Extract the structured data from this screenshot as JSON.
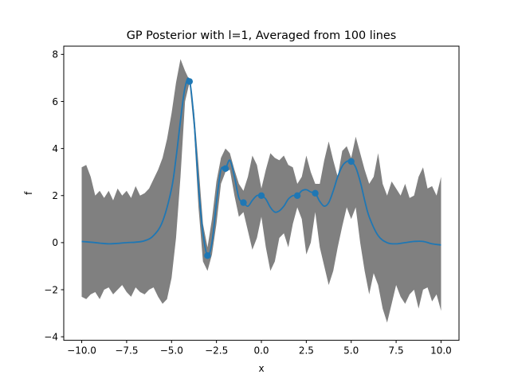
{
  "chart_data": {
    "type": "line",
    "title": "GP Posterior with l=1, Averaged from 100 lines",
    "xlabel": "x",
    "ylabel": "f",
    "xlim": [
      -11.0,
      11.0
    ],
    "ylim": [
      -4.15,
      8.35
    ],
    "xticks": [
      -10.0,
      -7.5,
      -5.0,
      -2.5,
      0.0,
      2.5,
      5.0,
      7.5,
      10.0
    ],
    "xtick_labels": [
      "−10.0",
      "−7.5",
      "−5.0",
      "−2.5",
      "0.0",
      "2.5",
      "5.0",
      "7.5",
      "10.0"
    ],
    "yticks": [
      -4,
      -2,
      0,
      2,
      4,
      6,
      8
    ],
    "ytick_labels": [
      "−4",
      "−2",
      "0",
      "2",
      "4",
      "6",
      "8"
    ],
    "grid": false,
    "legend": "none",
    "colors": {
      "mean": "#1f77b4",
      "band": "#808080",
      "points": "#1f77b4"
    },
    "points": {
      "x": [
        -4,
        -3,
        -2,
        -1,
        0,
        2,
        3,
        5
      ],
      "y": [
        6.85,
        -0.55,
        3.15,
        1.7,
        2.0,
        2.0,
        2.1,
        3.45
      ]
    },
    "mean": {
      "x": [
        -10,
        -9.5,
        -9,
        -8.5,
        -8,
        -7.5,
        -7,
        -6.5,
        -6,
        -5.5,
        -5,
        -4.75,
        -4.5,
        -4.25,
        -4,
        -3.75,
        -3.5,
        -3.25,
        -3,
        -2.75,
        -2.5,
        -2.25,
        -2,
        -1.75,
        -1.5,
        -1.25,
        -1,
        -0.75,
        -0.5,
        -0.25,
        0,
        0.25,
        0.5,
        0.75,
        1,
        1.25,
        1.5,
        1.75,
        2,
        2.25,
        2.5,
        2.75,
        3,
        3.25,
        3.5,
        3.75,
        4,
        4.25,
        4.5,
        4.75,
        5,
        5.25,
        5.5,
        5.75,
        6,
        6.5,
        7,
        7.5,
        8,
        8.5,
        9,
        9.5,
        10
      ],
      "y": [
        0.05,
        0.02,
        -0.02,
        -0.05,
        -0.03,
        0.0,
        0.02,
        0.08,
        0.3,
        0.9,
        2.3,
        3.6,
        5.2,
        6.6,
        6.9,
        5.2,
        2.4,
        0.4,
        -0.55,
        0.0,
        1.7,
        3.1,
        3.15,
        3.5,
        2.8,
        1.9,
        1.7,
        1.55,
        1.8,
        2.0,
        2.0,
        1.85,
        1.5,
        1.3,
        1.35,
        1.55,
        1.85,
        2.0,
        2.0,
        2.2,
        2.25,
        2.15,
        2.1,
        1.75,
        1.55,
        1.7,
        2.2,
        2.8,
        3.25,
        3.45,
        3.45,
        3.2,
        2.6,
        1.8,
        1.1,
        0.3,
        0.0,
        -0.05,
        0.0,
        0.05,
        0.05,
        -0.05,
        -0.1
      ]
    },
    "band": {
      "x": [
        -10,
        -9.75,
        -9.5,
        -9.25,
        -9,
        -8.75,
        -8.5,
        -8.25,
        -8,
        -7.75,
        -7.5,
        -7.25,
        -7,
        -6.75,
        -6.5,
        -6.25,
        -6,
        -5.75,
        -5.5,
        -5.25,
        -5,
        -4.75,
        -4.5,
        -4.25,
        -4,
        -3.75,
        -3.5,
        -3.25,
        -3,
        -2.75,
        -2.5,
        -2.25,
        -2,
        -1.75,
        -1.5,
        -1.25,
        -1,
        -0.75,
        -0.5,
        -0.25,
        0,
        0.25,
        0.5,
        0.75,
        1,
        1.25,
        1.5,
        1.75,
        2,
        2.25,
        2.5,
        2.75,
        3,
        3.25,
        3.5,
        3.75,
        4,
        4.25,
        4.5,
        4.75,
        5,
        5.25,
        5.5,
        5.75,
        6,
        6.25,
        6.5,
        6.75,
        7,
        7.25,
        7.5,
        7.75,
        8,
        8.25,
        8.5,
        8.75,
        9,
        9.25,
        9.5,
        9.75,
        10
      ],
      "upper": [
        3.2,
        3.3,
        2.8,
        2.0,
        2.2,
        1.9,
        2.2,
        1.8,
        2.3,
        2.0,
        2.2,
        1.9,
        2.4,
        2.0,
        2.1,
        2.3,
        2.7,
        3.1,
        3.6,
        4.4,
        5.5,
        6.8,
        7.8,
        7.3,
        6.9,
        5.6,
        3.3,
        0.8,
        -0.2,
        1.0,
        2.6,
        3.6,
        4.0,
        3.8,
        3.1,
        2.5,
        2.2,
        2.8,
        3.7,
        3.3,
        2.3,
        3.1,
        3.8,
        3.6,
        3.5,
        3.7,
        3.3,
        3.2,
        2.5,
        2.8,
        3.7,
        3.0,
        2.5,
        2.5,
        3.5,
        4.3,
        3.5,
        2.8,
        3.9,
        4.1,
        3.6,
        4.5,
        3.8,
        3.1,
        2.5,
        2.8,
        3.8,
        2.5,
        2.0,
        2.6,
        2.3,
        2.0,
        2.5,
        1.9,
        2.0,
        2.8,
        3.2,
        2.3,
        2.4,
        2.0,
        2.8
      ],
      "lower": [
        -2.3,
        -2.4,
        -2.2,
        -2.1,
        -2.4,
        -2.0,
        -1.9,
        -2.2,
        -2.0,
        -1.8,
        -2.1,
        -2.3,
        -1.9,
        -2.1,
        -2.2,
        -2.0,
        -1.9,
        -2.3,
        -2.6,
        -2.4,
        -1.5,
        0.2,
        2.8,
        6.0,
        6.8,
        4.8,
        1.5,
        -0.8,
        -1.2,
        -0.5,
        0.8,
        2.5,
        3.0,
        3.1,
        2.0,
        1.1,
        1.3,
        0.5,
        -0.3,
        0.2,
        1.1,
        -0.2,
        -1.2,
        -0.8,
        0.2,
        0.4,
        -0.2,
        0.8,
        1.5,
        1.0,
        -0.5,
        0.0,
        1.3,
        -0.2,
        -1.0,
        -1.8,
        -1.2,
        -0.2,
        0.7,
        1.5,
        1.0,
        1.5,
        0.0,
        -1.2,
        -2.2,
        -1.3,
        -1.8,
        -2.8,
        -3.4,
        -2.6,
        -1.8,
        -2.3,
        -2.6,
        -2.2,
        -2.0,
        -2.8,
        -2.0,
        -1.9,
        -2.5,
        -2.2,
        -2.9
      ]
    }
  }
}
